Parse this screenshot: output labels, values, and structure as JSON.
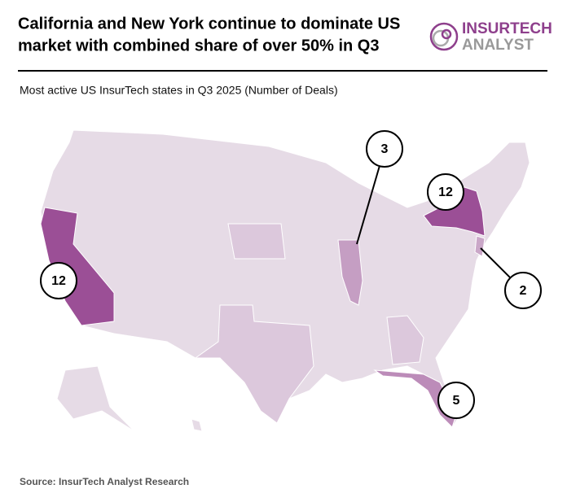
{
  "header": {
    "title_lines": [
      "California and New York continue to dominate US",
      "market with combined share of over 50% in Q3"
    ],
    "logo": {
      "top": "INSURTECH",
      "bottom": "ANALYST"
    }
  },
  "subtitle": "Most active US InsurTech states in Q3 2025 (Number of Deals)",
  "map": {
    "callouts": [
      {
        "value": 12
      },
      {
        "value": 12
      },
      {
        "value": 3
      },
      {
        "value": 2
      },
      {
        "value": 5
      }
    ]
  },
  "source": "Source: InsurTech Analyst Research"
}
